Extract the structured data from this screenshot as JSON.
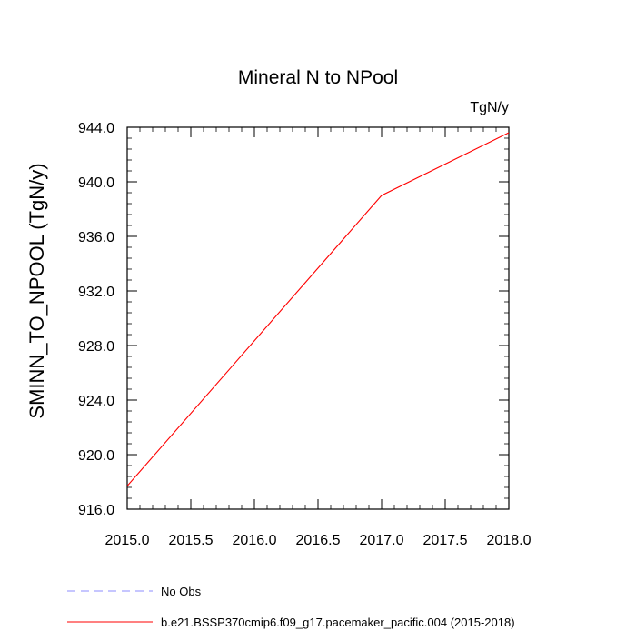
{
  "chart_data": {
    "type": "line",
    "title": "Mineral N to NPool",
    "units_label": "TgN/y",
    "xlabel": "",
    "ylabel": "SMINN_TO_NPOOL  (TgN/y)",
    "xlim": [
      2015.0,
      2018.0
    ],
    "ylim": [
      916.0,
      944.0
    ],
    "x_ticks": [
      2015.0,
      2015.5,
      2016.0,
      2016.5,
      2017.0,
      2017.5,
      2018.0
    ],
    "x_tick_labels": [
      "2015.0",
      "2015.5",
      "2016.0",
      "2016.5",
      "2017.0",
      "2017.5",
      "2018.0"
    ],
    "y_ticks": [
      916.0,
      920.0,
      924.0,
      928.0,
      932.0,
      936.0,
      940.0,
      944.0
    ],
    "y_tick_labels": [
      "916.0",
      "920.0",
      "924.0",
      "928.0",
      "932.0",
      "936.0",
      "940.0",
      "944.0"
    ],
    "series": [
      {
        "name": "b.e21.BSSP370cmip6.f09_g17.pacemaker_pacific.004 (2015-2018)",
        "color": "#ff0000",
        "dash": "solid",
        "x": [
          2015.0,
          2017.0,
          2018.0
        ],
        "y": [
          917.7,
          939.0,
          943.6
        ]
      }
    ],
    "legend": {
      "position": "bottom-left",
      "entries": [
        {
          "label": "No Obs",
          "color": "#8c8cff",
          "dash": "dashed"
        },
        {
          "label": "b.e21.BSSP370cmip6.f09_g17.pacemaker_pacific.004 (2015-2018)",
          "color": "#ff0000",
          "dash": "solid"
        }
      ]
    }
  }
}
